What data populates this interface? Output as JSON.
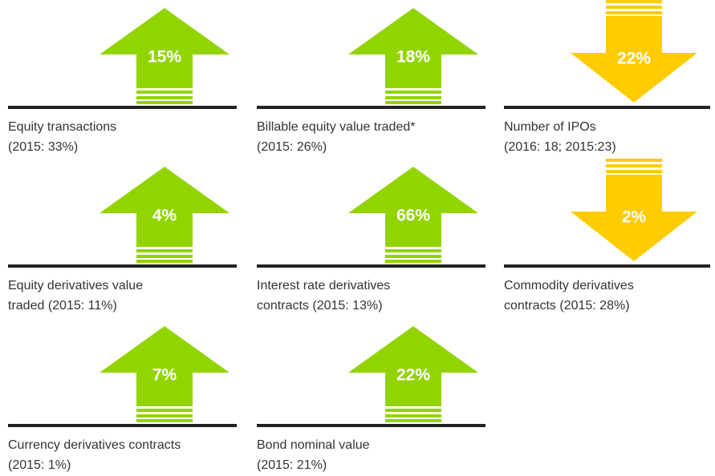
{
  "items": [
    {
      "value": "15%",
      "direction": "up",
      "lines": [
        "Equity transactions",
        "(2015: 33%)"
      ]
    },
    {
      "value": "18%",
      "direction": "up",
      "lines": [
        "Billable equity value traded*",
        "(2015: 26%)"
      ]
    },
    {
      "value": "22%",
      "direction": "down",
      "lines": [
        "Number of IPOs",
        "(2016: 18; 2015:23)"
      ]
    },
    {
      "value": "4%",
      "direction": "up",
      "lines": [
        "Equity derivatives value",
        "traded (2015: 11%)"
      ]
    },
    {
      "value": "66%",
      "direction": "up",
      "lines": [
        "Interest rate derivatives",
        "contracts (2015: 13%)"
      ]
    },
    {
      "value": "2%",
      "direction": "down",
      "lines": [
        "Commodity  derivatives",
        "contracts (2015: 28%)"
      ]
    },
    {
      "value": "7%",
      "direction": "up",
      "lines": [
        "Currency derivatives contracts",
        "(2015: 1%)"
      ]
    },
    {
      "value": "22%",
      "direction": "up",
      "lines": [
        "Bond nominal value",
        "(2015: 21%)"
      ]
    }
  ]
}
